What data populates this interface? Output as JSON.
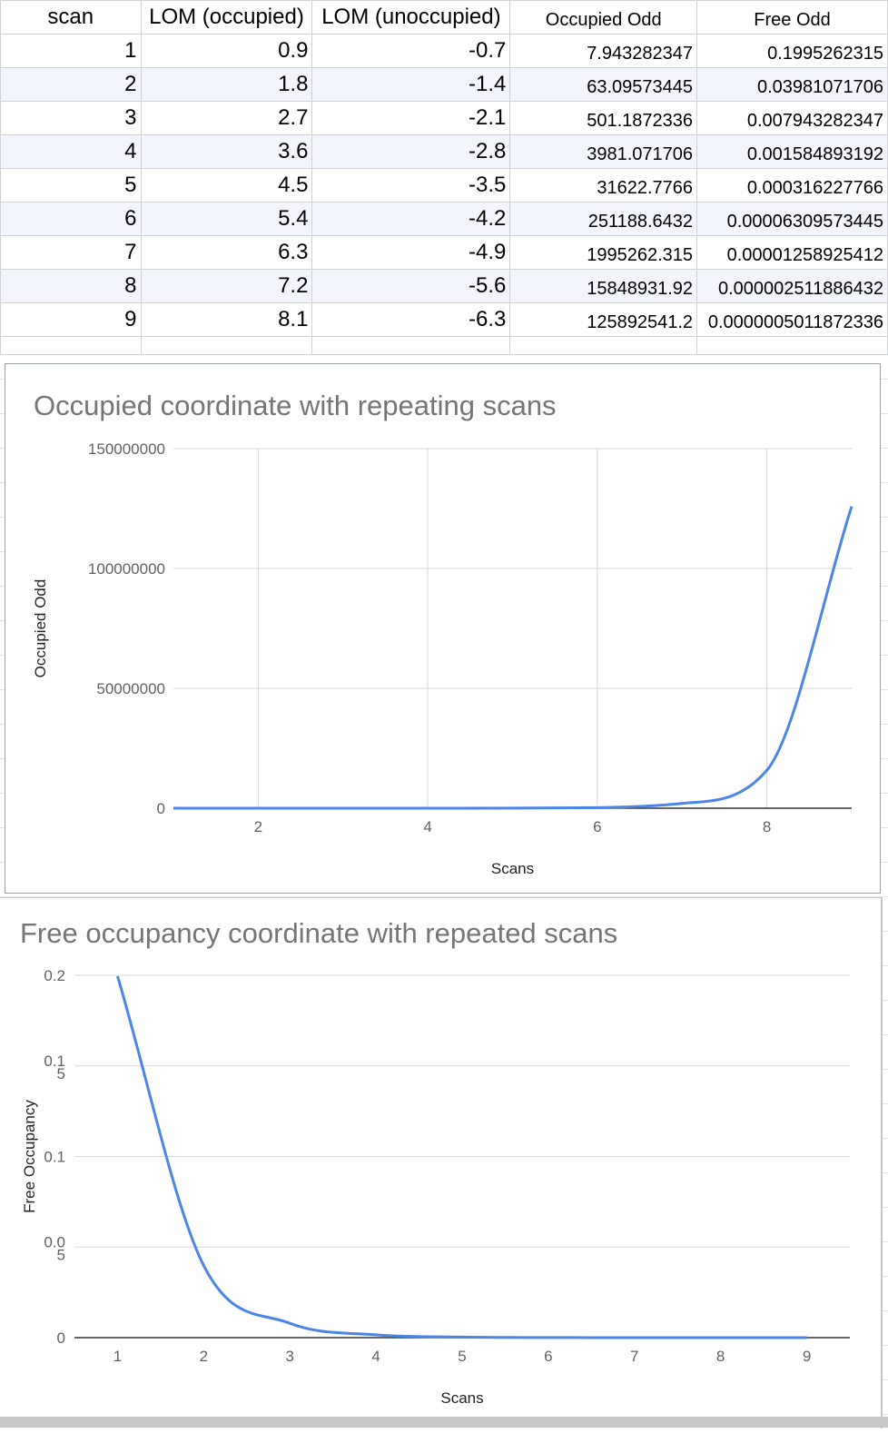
{
  "sheet": {
    "headers": [
      "scan",
      "LOM (occupied)",
      "LOM (unoccupied)",
      "Occupied Odd",
      "Free Odd"
    ],
    "rows": [
      [
        "1",
        "0.9",
        "-0.7",
        "7.943282347",
        "0.1995262315"
      ],
      [
        "2",
        "1.8",
        "-1.4",
        "63.09573445",
        "0.03981071706"
      ],
      [
        "3",
        "2.7",
        "-2.1",
        "501.1872336",
        "0.007943282347"
      ],
      [
        "4",
        "3.6",
        "-2.8",
        "3981.071706",
        "0.001584893192"
      ],
      [
        "5",
        "4.5",
        "-3.5",
        "31622.7766",
        "0.000316227766"
      ],
      [
        "6",
        "5.4",
        "-4.2",
        "251188.6432",
        "0.00006309573445"
      ],
      [
        "7",
        "6.3",
        "-4.9",
        "1995262.315",
        "0.00001258925412"
      ],
      [
        "8",
        "7.2",
        "-5.6",
        "15848931.92",
        "0.000002511886432"
      ],
      [
        "9",
        "8.1",
        "-6.3",
        "125892541.2",
        "0.0000005011872336"
      ]
    ]
  },
  "colors": {
    "line": "#4a86e8",
    "grid": "#d9d9d9",
    "axis": "#333333",
    "title": "#757575",
    "tick": "#616161",
    "alt_row": "#f2f5fb"
  },
  "chart_data": [
    {
      "type": "line",
      "title": "Occupied coordinate with repeating scans",
      "xlabel": "Scans",
      "ylabel": "Occupied Odd",
      "x": [
        1,
        2,
        3,
        4,
        5,
        6,
        7,
        8,
        9
      ],
      "series": [
        {
          "values": [
            7.943282347,
            63.09573445,
            501.1872336,
            3981.071706,
            31622.7766,
            251188.6432,
            1995262.315,
            15848931.92,
            125892541.2
          ]
        }
      ],
      "xlim": [
        1,
        9
      ],
      "ylim": [
        0,
        150000000
      ],
      "xticks": [
        "2",
        "4",
        "6",
        "8"
      ],
      "yticks": [
        "0",
        "50000000",
        "100000000",
        "150000000"
      ],
      "grid": true,
      "smooth": true
    },
    {
      "type": "line",
      "title": "Free occupancy coordinate with repeated scans",
      "xlabel": "Scans",
      "ylabel": "Free Occupancy",
      "x": [
        1,
        2,
        3,
        4,
        5,
        6,
        7,
        8,
        9
      ],
      "series": [
        {
          "values": [
            0.1995262315,
            0.03981071706,
            0.007943282347,
            0.001584893192,
            0.000316227766,
            6.309573445e-05,
            1.258925412e-05,
            2.511886432e-06,
            5.011872336e-07
          ]
        }
      ],
      "xlim": [
        0.5,
        9.5
      ],
      "ylim": [
        0,
        0.2
      ],
      "xticks": [
        "1",
        "2",
        "3",
        "4",
        "5",
        "6",
        "7",
        "8",
        "9"
      ],
      "yticks": [
        "0",
        "0.0 5",
        "0.1",
        "0.1 5",
        "0.2"
      ],
      "grid": true,
      "smooth": true
    }
  ]
}
